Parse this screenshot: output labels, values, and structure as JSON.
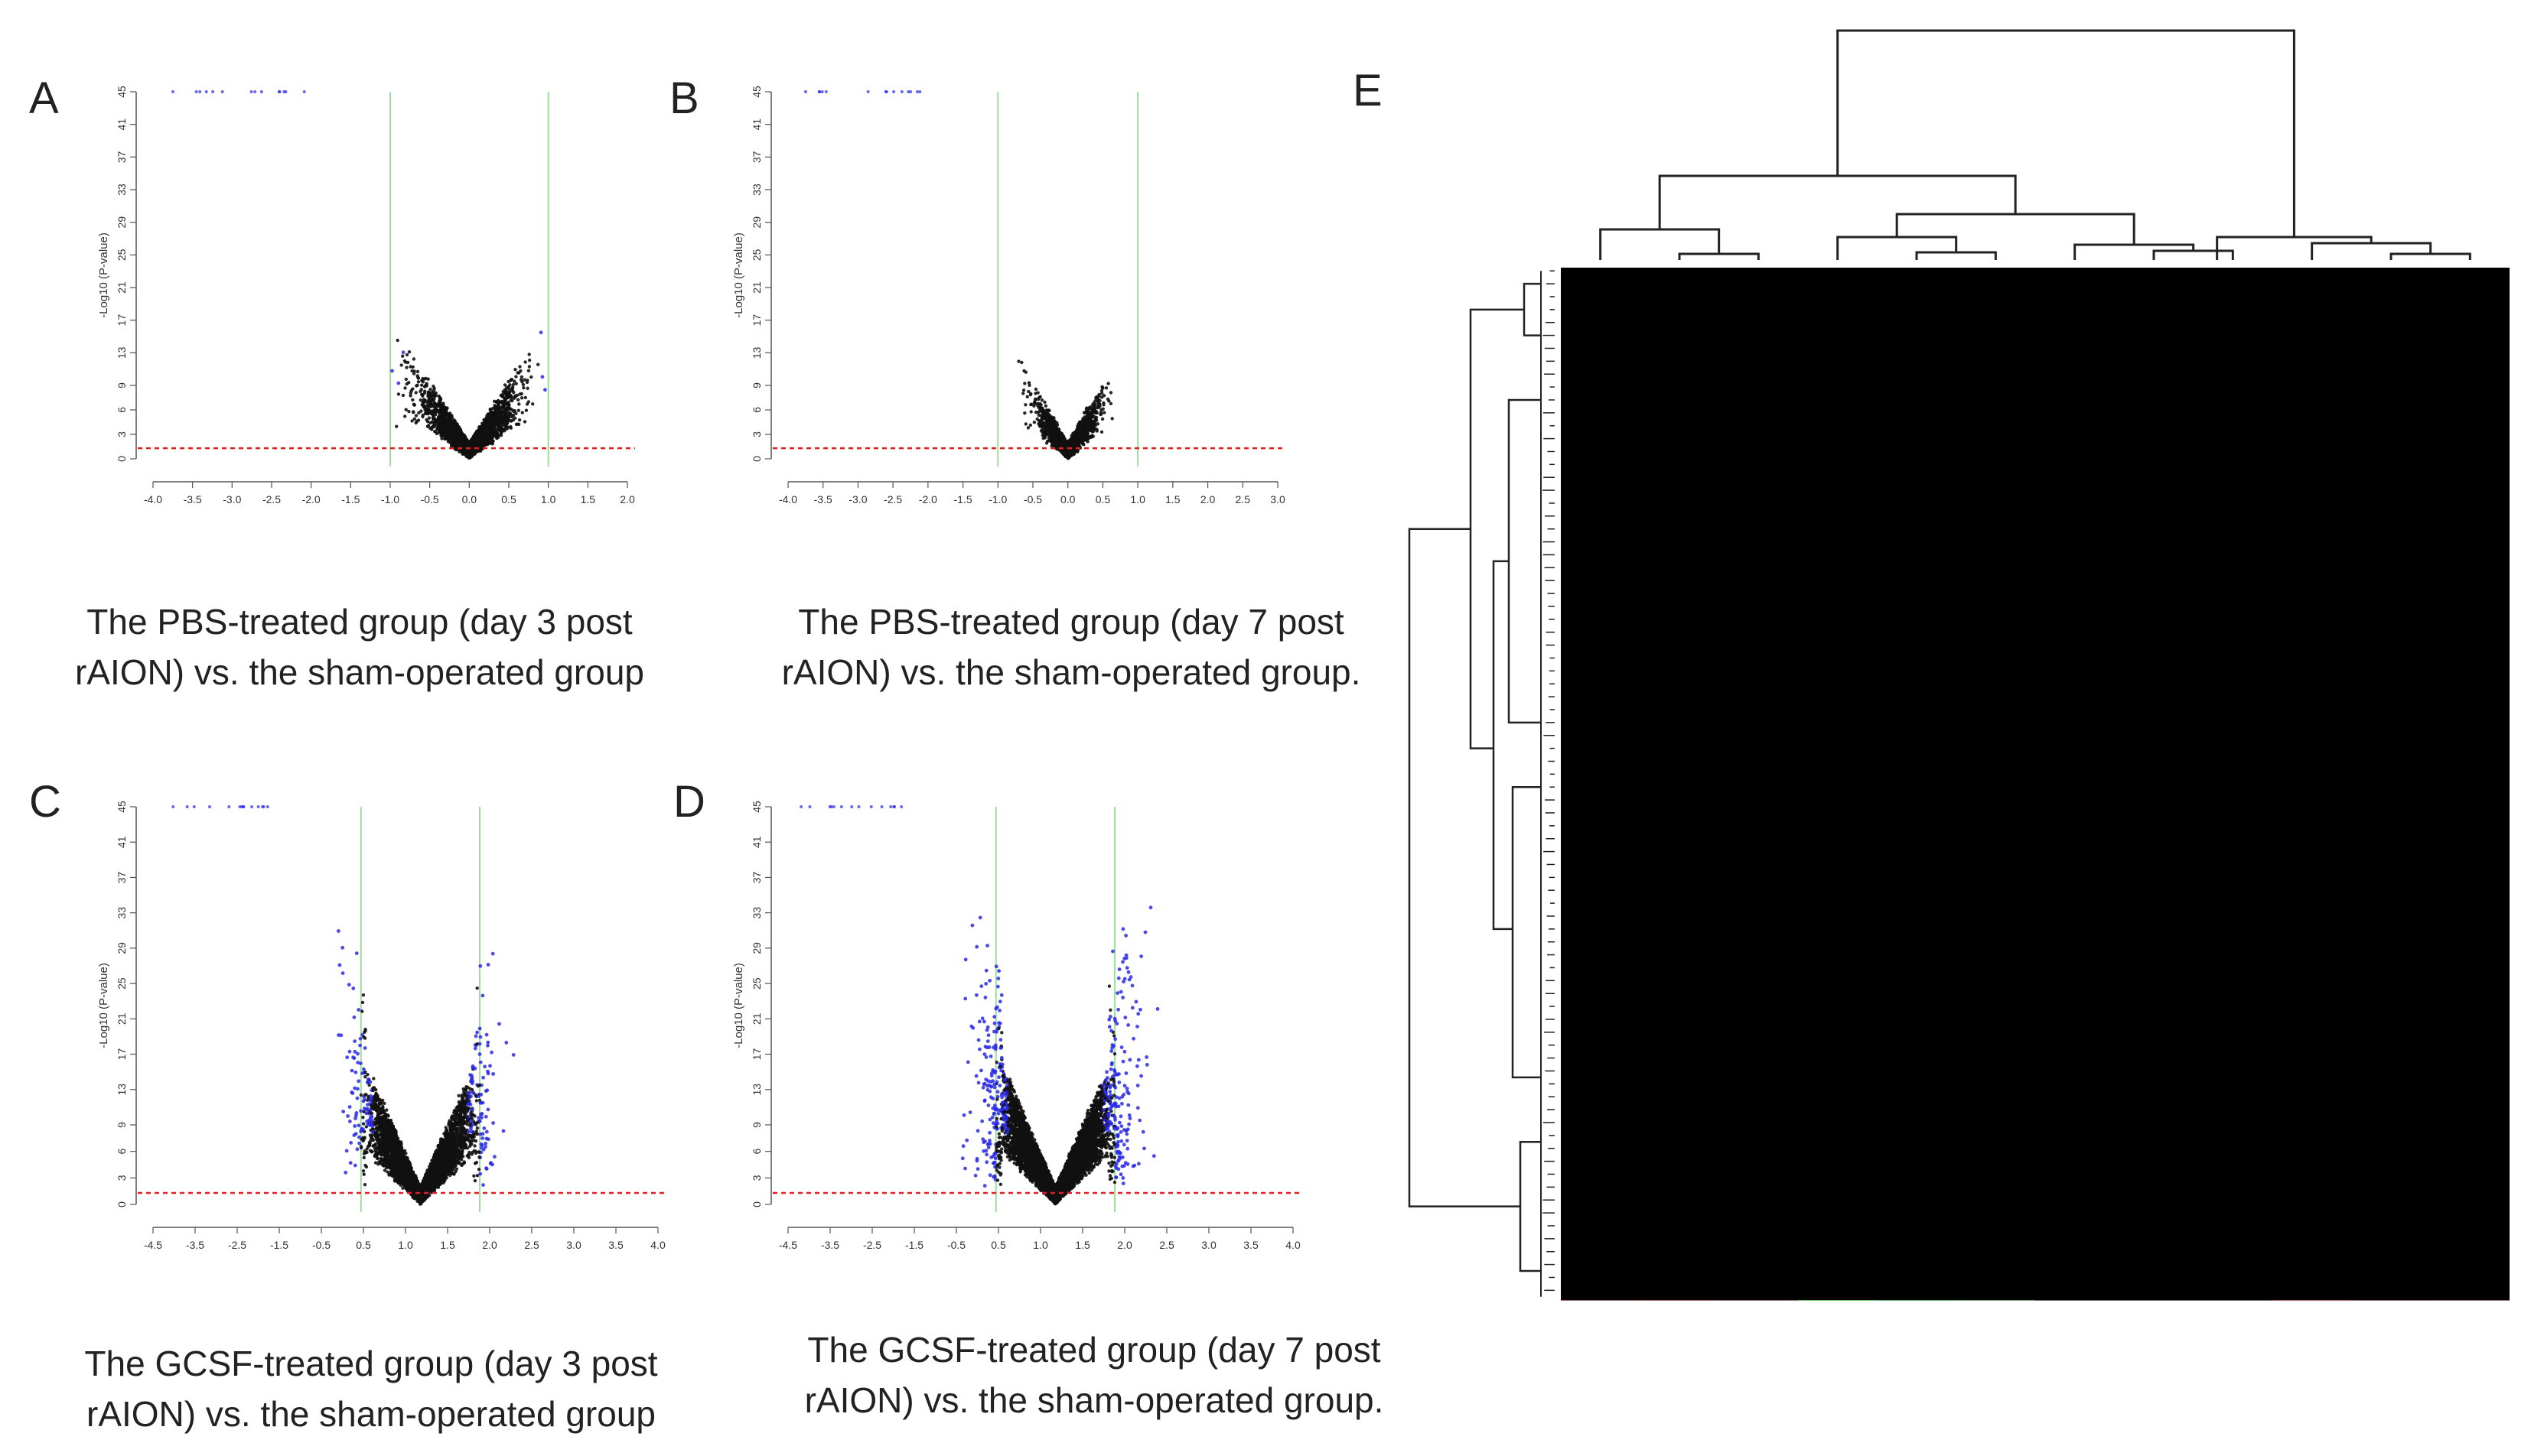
{
  "panels": {
    "A": {
      "letter": "A",
      "ylabel": "-Log10 (P-value)",
      "caption_line1": "The PBS-treated group (day 3 post",
      "caption_line2": "rAION) vs. the sham-operated group",
      "x_ticks": [
        "-4.0",
        "-3.5",
        "-3.0",
        "-2.5",
        "-2.0",
        "-1.5",
        "-1.0",
        "-0.5",
        "0.0",
        "0.5",
        "1.0",
        "1.5",
        "2.0"
      ],
      "y_ticks": [
        "0",
        "3",
        "6",
        "9",
        "13",
        "17",
        "21",
        "25",
        "29",
        "33",
        "37",
        "41",
        "45"
      ]
    },
    "B": {
      "letter": "B",
      "ylabel": "-Log10 (P-value)",
      "caption_line1": "The PBS-treated group (day 7 post",
      "caption_line2": "rAION) vs. the sham-operated group.",
      "x_ticks": [
        "-4.0",
        "-3.5",
        "-3.0",
        "-2.5",
        "-2.0",
        "-1.5",
        "-1.0",
        "-0.5",
        "0.0",
        "0.5",
        "1.0",
        "1.5",
        "2.0",
        "2.5",
        "3.0"
      ],
      "y_ticks": [
        "0",
        "3",
        "6",
        "9",
        "13",
        "17",
        "21",
        "25",
        "29",
        "33",
        "37",
        "41",
        "45"
      ]
    },
    "C": {
      "letter": "C",
      "ylabel": "-Log10 (P-value)",
      "caption_line1": "The GCSF-treated group (day 3 post",
      "caption_line2": "rAION) vs. the sham-operated group",
      "x_ticks": [
        "-4.5",
        "-3.5",
        "-2.5",
        "-1.5",
        "-0.5",
        "0.5",
        "1.0",
        "1.5",
        "2.0",
        "2.5",
        "3.0",
        "3.5",
        "4.0"
      ],
      "y_ticks": [
        "0",
        "3",
        "6",
        "9",
        "13",
        "17",
        "21",
        "25",
        "29",
        "33",
        "37",
        "41",
        "45"
      ]
    },
    "D": {
      "letter": "D",
      "ylabel": "-Log10 (P-value)",
      "caption_line1": "The GCSF-treated group (day 7 post",
      "caption_line2": "rAION) vs. the sham-operated group.",
      "x_ticks": [
        "-4.5",
        "-3.5",
        "-2.5",
        "-1.5",
        "-0.5",
        "0.5",
        "1.0",
        "1.5",
        "2.0",
        "2.5",
        "3.0",
        "3.5",
        "4.0"
      ],
      "y_ticks": [
        "0",
        "3",
        "6",
        "9",
        "13",
        "17",
        "21",
        "25",
        "29",
        "33",
        "37",
        "41",
        "45"
      ]
    },
    "E": {
      "letter": "E"
    }
  },
  "colors": {
    "significant_points": "#2a2ae6",
    "nonsignificant_points": "#111111",
    "pvalue_threshold_line": "#e02020",
    "fold_change_threshold_lines": "#9adf9a",
    "heatmap_up": "#e01010",
    "heatmap_down": "#10e010",
    "heatmap_mid": "#000000",
    "dendrogram": "#222222"
  },
  "heatmap": {
    "sample_groups": 4,
    "samples_per_group": 3
  }
}
